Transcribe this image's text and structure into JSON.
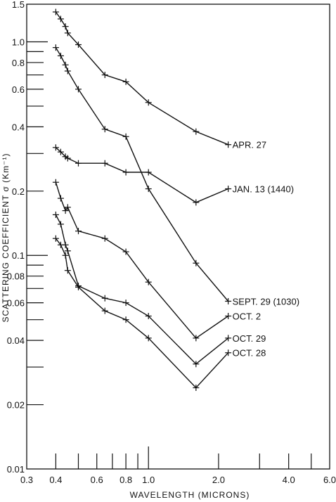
{
  "chart_data": {
    "type": "line",
    "title": "",
    "xlabel": "WAVELENGTH (MICRONS)",
    "ylabel": "SCATTERING COEFFICIENT σ (Km⁻¹)",
    "xscale": "log",
    "yscale": "log",
    "xlim": [
      0.3,
      6.0
    ],
    "ylim": [
      0.01,
      1.5
    ],
    "x_tick_labels": [
      {
        "value": 0.3,
        "label": "0.3"
      },
      {
        "value": 0.4,
        "label": "0.4"
      },
      {
        "value": 0.6,
        "label": "0.6"
      },
      {
        "value": 0.8,
        "label": "0.8"
      },
      {
        "value": 1.0,
        "label": "1.0"
      },
      {
        "value": 2.0,
        "label": "2.0"
      },
      {
        "value": 4.0,
        "label": "4.0"
      },
      {
        "value": 6.0,
        "label": "6.0"
      }
    ],
    "x_minor_ticks": [
      0.4,
      0.5,
      0.6,
      0.7,
      0.8,
      0.9,
      1.0,
      2.0,
      3.0,
      4.0,
      5.0
    ],
    "y_tick_labels": [
      {
        "value": 0.01,
        "label": "0.01"
      },
      {
        "value": 0.02,
        "label": "0.02"
      },
      {
        "value": 0.04,
        "label": "0.04"
      },
      {
        "value": 0.06,
        "label": "0.06"
      },
      {
        "value": 0.08,
        "label": "0.08"
      },
      {
        "value": 0.1,
        "label": "0.1"
      },
      {
        "value": 0.2,
        "label": "0.2"
      },
      {
        "value": 0.4,
        "label": "0.4"
      },
      {
        "value": 0.6,
        "label": "0.6"
      },
      {
        "value": 0.8,
        "label": "0.8"
      },
      {
        "value": 1.0,
        "label": "1.0"
      },
      {
        "value": 1.5,
        "label": "1.5"
      }
    ],
    "y_minor_ticks": [
      0.02,
      0.03,
      0.04,
      0.05,
      0.06,
      0.07,
      0.08,
      0.09,
      0.1,
      0.2,
      0.3,
      0.4,
      0.5,
      0.6,
      0.7,
      0.8,
      0.9,
      1.0
    ],
    "grid": false,
    "series": [
      {
        "name": "APR. 27",
        "x": [
          0.4,
          0.42,
          0.44,
          0.45,
          0.5,
          0.65,
          0.8,
          1.0,
          1.6,
          2.2
        ],
        "y": [
          1.38,
          1.28,
          1.18,
          1.1,
          0.97,
          0.7,
          0.65,
          0.52,
          0.38,
          0.33
        ]
      },
      {
        "name": "SEPT. 29 (1030)",
        "x": [
          0.4,
          0.42,
          0.44,
          0.45,
          0.5,
          0.65,
          0.8,
          1.0,
          1.6,
          2.2
        ],
        "y": [
          0.94,
          0.86,
          0.78,
          0.73,
          0.6,
          0.39,
          0.36,
          0.205,
          0.092,
          0.061
        ]
      },
      {
        "name": "JAN. 13 (1440)",
        "x": [
          0.4,
          0.42,
          0.44,
          0.45,
          0.5,
          0.65,
          0.8,
          1.0,
          1.6,
          2.2
        ],
        "y": [
          0.32,
          0.305,
          0.29,
          0.285,
          0.27,
          0.27,
          0.245,
          0.245,
          0.177,
          0.205
        ]
      },
      {
        "name": "OCT. 2",
        "x": [
          0.4,
          0.42,
          0.44,
          0.45,
          0.5,
          0.65,
          0.8,
          1.0,
          1.6,
          2.2
        ],
        "y": [
          0.22,
          0.185,
          0.162,
          0.168,
          0.13,
          0.12,
          0.104,
          0.075,
          0.041,
          0.052
        ]
      },
      {
        "name": "OCT. 29",
        "x": [
          0.4,
          0.42,
          0.44,
          0.45,
          0.5,
          0.65,
          0.8,
          1.0,
          1.6,
          2.2
        ],
        "y": [
          0.155,
          0.14,
          0.112,
          0.105,
          0.072,
          0.063,
          0.06,
          0.052,
          0.031,
          0.041
        ]
      },
      {
        "name": "OCT. 28",
        "x": [
          0.4,
          0.42,
          0.44,
          0.45,
          0.5,
          0.65,
          0.8,
          1.0,
          1.6,
          2.2
        ],
        "y": [
          0.12,
          0.112,
          0.1,
          0.085,
          0.071,
          0.055,
          0.05,
          0.041,
          0.024,
          0.035
        ]
      }
    ],
    "series_labels": [
      {
        "text": "APR. 27"
      },
      {
        "text": "SEPT. 29 (1030)"
      },
      {
        "text": "JAN. 13 (1440)"
      },
      {
        "text": "OCT. 2"
      },
      {
        "text": "OCT. 29"
      },
      {
        "text": "OCT. 28"
      }
    ]
  }
}
